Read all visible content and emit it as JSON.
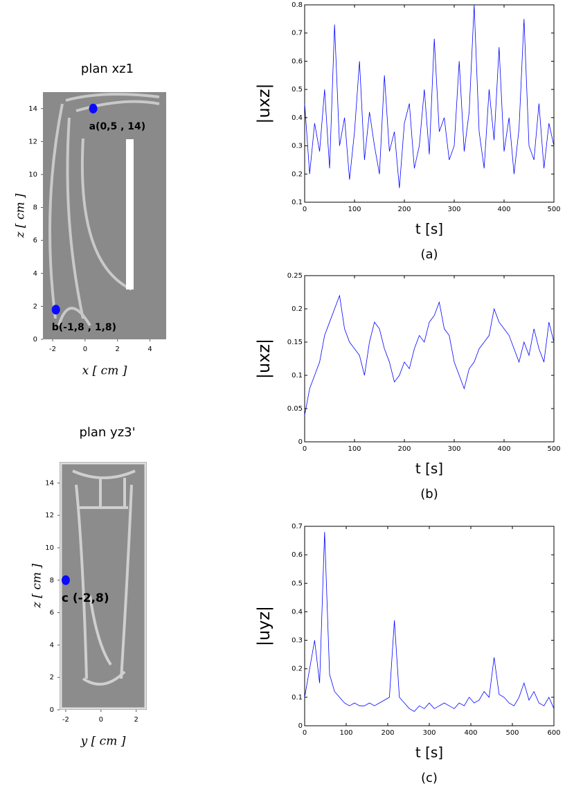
{
  "chart_data": [
    {
      "type": "line",
      "ylabel": "|uxz|",
      "xlabel": "t [s]",
      "caption": "(a)",
      "x": [
        0,
        10,
        20,
        30,
        40,
        50,
        60,
        70,
        80,
        90,
        100,
        110,
        120,
        130,
        140,
        150,
        160,
        170,
        180,
        190,
        200,
        210,
        220,
        230,
        240,
        250,
        260,
        270,
        280,
        290,
        300,
        310,
        320,
        330,
        340,
        350,
        360,
        370,
        380,
        390,
        400,
        410,
        420,
        430,
        440,
        450,
        460,
        470,
        480,
        490,
        500
      ],
      "series": [
        {
          "color": "#0000ff",
          "values": [
            0.45,
            0.2,
            0.38,
            0.28,
            0.5,
            0.22,
            0.73,
            0.3,
            0.4,
            0.18,
            0.35,
            0.6,
            0.25,
            0.42,
            0.3,
            0.2,
            0.55,
            0.28,
            0.35,
            0.15,
            0.38,
            0.45,
            0.22,
            0.3,
            0.5,
            0.27,
            0.68,
            0.35,
            0.4,
            0.25,
            0.3,
            0.6,
            0.28,
            0.42,
            0.8,
            0.35,
            0.22,
            0.5,
            0.32,
            0.65,
            0.28,
            0.4,
            0.2,
            0.36,
            0.75,
            0.3,
            0.25,
            0.45,
            0.22,
            0.38,
            0.3
          ]
        }
      ],
      "xlim": [
        0,
        500
      ],
      "xticks": [
        0,
        100,
        200,
        300,
        400,
        500
      ],
      "ylim": [
        0.1,
        0.8
      ],
      "yticks": [
        0.1,
        0.2,
        0.3,
        0.4,
        0.5,
        0.6,
        0.7,
        0.8
      ]
    },
    {
      "type": "line",
      "ylabel": "|uxz|",
      "xlabel": "t [s]",
      "caption": "(b)",
      "x": [
        0,
        10,
        20,
        30,
        40,
        50,
        60,
        70,
        80,
        90,
        100,
        110,
        120,
        130,
        140,
        150,
        160,
        170,
        180,
        190,
        200,
        210,
        220,
        230,
        240,
        250,
        260,
        270,
        280,
        290,
        300,
        310,
        320,
        330,
        340,
        350,
        360,
        370,
        380,
        390,
        400,
        410,
        420,
        430,
        440,
        450,
        460,
        470,
        480,
        490,
        500
      ],
      "series": [
        {
          "color": "#0000ff",
          "values": [
            0.04,
            0.08,
            0.1,
            0.12,
            0.16,
            0.18,
            0.2,
            0.22,
            0.17,
            0.15,
            0.14,
            0.13,
            0.1,
            0.15,
            0.18,
            0.17,
            0.14,
            0.12,
            0.09,
            0.1,
            0.12,
            0.11,
            0.14,
            0.16,
            0.15,
            0.18,
            0.19,
            0.21,
            0.17,
            0.16,
            0.12,
            0.1,
            0.08,
            0.11,
            0.12,
            0.14,
            0.15,
            0.16,
            0.2,
            0.18,
            0.17,
            0.16,
            0.14,
            0.12,
            0.15,
            0.13,
            0.17,
            0.14,
            0.12,
            0.18,
            0.15
          ]
        }
      ],
      "xlim": [
        0,
        500
      ],
      "xticks": [
        0,
        100,
        200,
        300,
        400,
        500
      ],
      "ylim": [
        0,
        0.25
      ],
      "yticks": [
        0,
        0.05,
        0.1,
        0.15,
        0.2,
        0.25
      ]
    },
    {
      "type": "line",
      "ylabel": "|uyz|",
      "xlabel": "t [s]",
      "caption": "(c)",
      "x": [
        0,
        12,
        24,
        36,
        48,
        60,
        72,
        84,
        96,
        108,
        120,
        132,
        144,
        156,
        168,
        180,
        192,
        204,
        216,
        228,
        240,
        252,
        264,
        276,
        288,
        300,
        312,
        324,
        336,
        348,
        360,
        372,
        384,
        396,
        408,
        420,
        432,
        444,
        456,
        468,
        480,
        492,
        504,
        516,
        528,
        540,
        552,
        564,
        576,
        588,
        600
      ],
      "series": [
        {
          "color": "#0000ff",
          "values": [
            0.1,
            0.2,
            0.3,
            0.15,
            0.68,
            0.18,
            0.12,
            0.1,
            0.08,
            0.07,
            0.08,
            0.07,
            0.07,
            0.08,
            0.07,
            0.08,
            0.09,
            0.1,
            0.37,
            0.1,
            0.08,
            0.06,
            0.05,
            0.07,
            0.06,
            0.08,
            0.06,
            0.07,
            0.08,
            0.07,
            0.06,
            0.08,
            0.07,
            0.1,
            0.08,
            0.09,
            0.12,
            0.1,
            0.24,
            0.11,
            0.1,
            0.08,
            0.07,
            0.1,
            0.15,
            0.09,
            0.12,
            0.08,
            0.07,
            0.1,
            0.06
          ]
        }
      ],
      "xlim": [
        0,
        600
      ],
      "xticks": [
        0,
        100,
        200,
        300,
        400,
        500,
        600
      ],
      "ylim": [
        0,
        0.7
      ],
      "yticks": [
        0,
        0.1,
        0.2,
        0.3,
        0.4,
        0.5,
        0.6,
        0.7
      ]
    }
  ],
  "images": [
    {
      "title": "plan xz1",
      "xlabel": "x [ cm ]",
      "ylabel": "z [ cm ]",
      "xlim": [
        -2.6,
        5
      ],
      "xticks": [
        -2,
        0,
        2,
        4
      ],
      "ylim": [
        0,
        15
      ],
      "yticks": [
        0,
        2,
        4,
        6,
        8,
        10,
        12,
        14
      ],
      "points": [
        {
          "label": "a(0,5 , 14)",
          "x": 0.5,
          "y": 14
        },
        {
          "label": "b(-1,8 , 1,8)",
          "x": -1.8,
          "y": 1.8
        }
      ]
    },
    {
      "title": "plan yz3'",
      "xlabel": "y [ cm ]",
      "ylabel": "z [ cm ]",
      "xlim": [
        -2.35,
        2.6
      ],
      "xticks": [
        -2,
        0,
        2
      ],
      "ylim": [
        0,
        15.3
      ],
      "yticks": [
        0,
        2,
        4,
        6,
        8,
        10,
        12,
        14
      ],
      "points": [
        {
          "label": "c (-2,8)",
          "x": -2,
          "y": 8
        }
      ]
    }
  ]
}
